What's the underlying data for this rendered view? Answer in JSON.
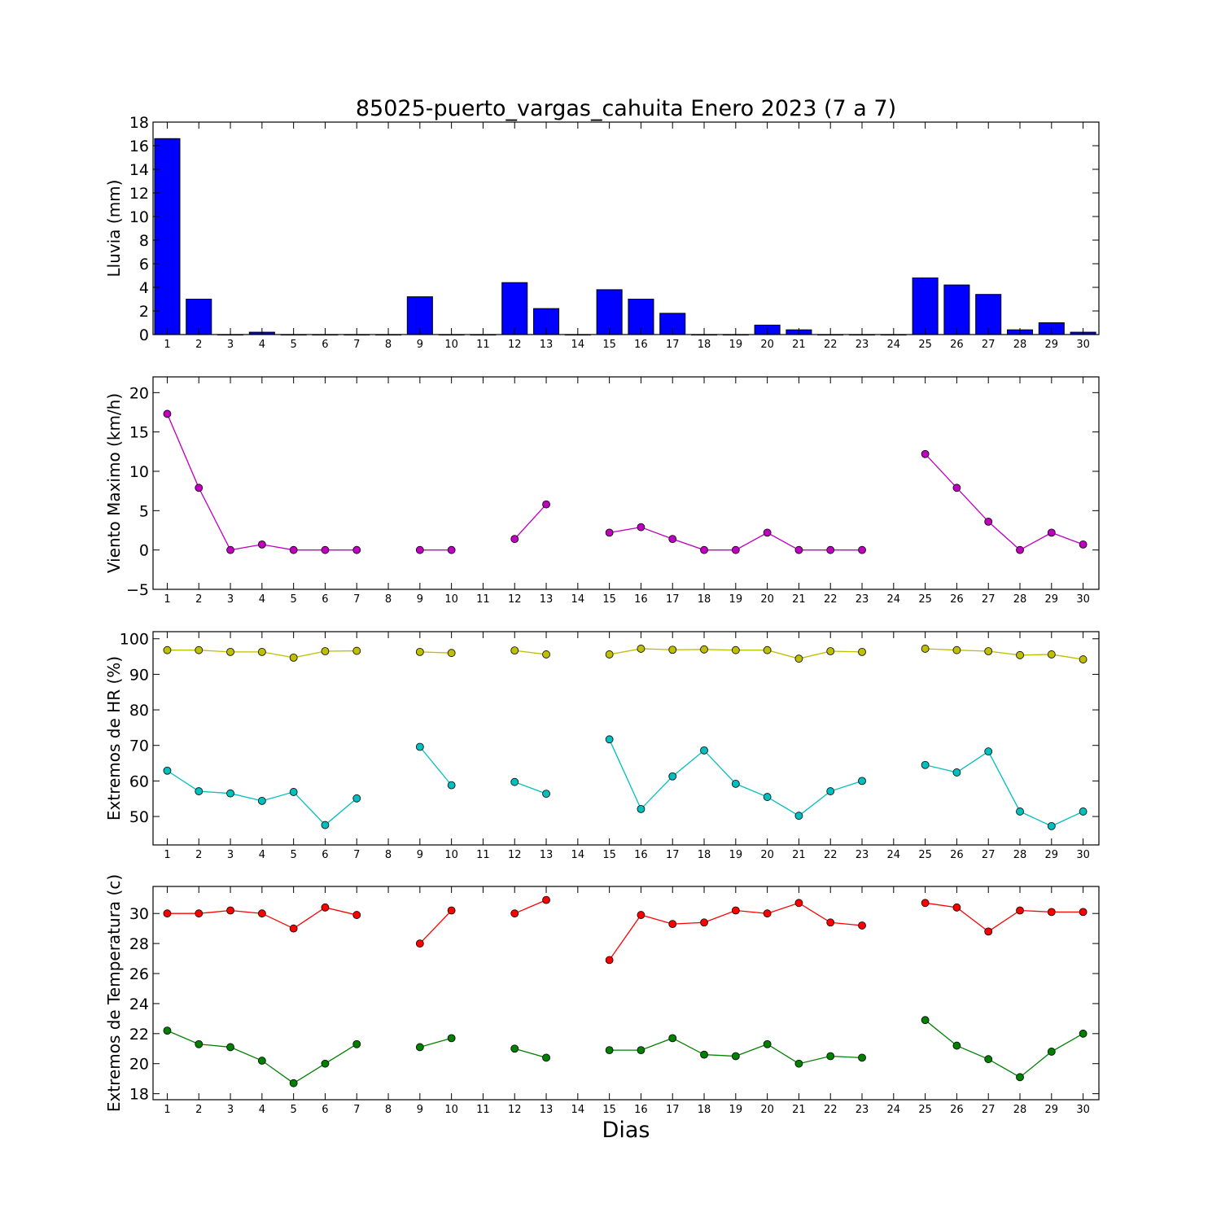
{
  "figure": {
    "title": "85025-puerto_vargas_cahuita Enero 2023  (7 a 7)",
    "xlabel": "Dias"
  },
  "chart_data": [
    {
      "type": "bar",
      "ylabel": "Lluvia (mm)",
      "ylim": [
        0,
        18
      ],
      "yticks": [
        0,
        2,
        4,
        6,
        8,
        10,
        12,
        14,
        16,
        18
      ],
      "categories": [
        1,
        2,
        3,
        4,
        5,
        6,
        7,
        8,
        9,
        10,
        11,
        12,
        13,
        14,
        15,
        16,
        17,
        18,
        19,
        20,
        21,
        22,
        23,
        24,
        25,
        26,
        27,
        28,
        29,
        30
      ],
      "values": [
        16.6,
        3.0,
        0.0,
        0.2,
        0.0,
        0.0,
        0.0,
        0.0,
        3.2,
        0.0,
        0.0,
        4.4,
        2.2,
        0.0,
        3.8,
        3.0,
        1.8,
        0.0,
        0.0,
        0.8,
        0.4,
        0.0,
        0.0,
        0.0,
        4.8,
        4.2,
        3.4,
        0.4,
        1.0,
        0.2
      ],
      "color": "#0000ff"
    },
    {
      "type": "line",
      "ylabel": "Viento Maximo (km/h)",
      "ylim": [
        -5,
        22
      ],
      "yticks": [
        -5,
        0,
        5,
        10,
        15,
        20
      ],
      "x": [
        1,
        2,
        3,
        4,
        5,
        6,
        7,
        8,
        9,
        10,
        11,
        12,
        13,
        14,
        15,
        16,
        17,
        18,
        19,
        20,
        21,
        22,
        23,
        24,
        25,
        26,
        27,
        28,
        29,
        30
      ],
      "series": [
        {
          "color": "#bf00bf",
          "values": [
            17.3,
            7.9,
            0.0,
            0.7,
            0.0,
            0.0,
            0.0,
            null,
            0.0,
            0.0,
            null,
            1.4,
            5.8,
            null,
            2.2,
            2.9,
            1.4,
            0.0,
            0.0,
            2.2,
            0.0,
            0.0,
            0.0,
            null,
            12.2,
            7.9,
            3.6,
            0.0,
            2.2,
            0.7
          ]
        }
      ]
    },
    {
      "type": "line",
      "ylabel": "Extremos de HR (%)",
      "ylim": [
        42,
        102
      ],
      "yticks": [
        50,
        60,
        70,
        80,
        90,
        100
      ],
      "x": [
        1,
        2,
        3,
        4,
        5,
        6,
        7,
        8,
        9,
        10,
        11,
        12,
        13,
        14,
        15,
        16,
        17,
        18,
        19,
        20,
        21,
        22,
        23,
        24,
        25,
        26,
        27,
        28,
        29,
        30
      ],
      "series": [
        {
          "color": "#bfbf00",
          "values": [
            96.8,
            96.8,
            96.3,
            96.3,
            94.7,
            96.5,
            96.6,
            null,
            96.3,
            96.0,
            null,
            96.7,
            95.6,
            null,
            95.6,
            97.2,
            96.9,
            97.0,
            96.8,
            96.8,
            94.4,
            96.5,
            96.3,
            null,
            97.2,
            96.8,
            96.5,
            95.4,
            95.6,
            94.2
          ]
        },
        {
          "color": "#00bfbf",
          "values": [
            62.9,
            57.1,
            56.5,
            54.4,
            56.9,
            47.6,
            55.1,
            null,
            69.6,
            58.8,
            null,
            59.7,
            56.4,
            null,
            71.7,
            52.1,
            61.3,
            68.6,
            59.2,
            55.5,
            50.2,
            57.1,
            60.0,
            null,
            64.5,
            62.4,
            68.3,
            51.4,
            47.3,
            51.4
          ]
        }
      ]
    },
    {
      "type": "line",
      "ylabel": "Extremos de Temperatura (c)",
      "ylim": [
        17.6,
        31.8
      ],
      "yticks": [
        18,
        20,
        22,
        24,
        26,
        28,
        30
      ],
      "x": [
        1,
        2,
        3,
        4,
        5,
        6,
        7,
        8,
        9,
        10,
        11,
        12,
        13,
        14,
        15,
        16,
        17,
        18,
        19,
        20,
        21,
        22,
        23,
        24,
        25,
        26,
        27,
        28,
        29,
        30
      ],
      "series": [
        {
          "color": "#ff0000",
          "values": [
            30.0,
            30.0,
            30.2,
            30.0,
            29.0,
            30.4,
            29.9,
            null,
            28.0,
            30.2,
            null,
            30.0,
            30.9,
            null,
            26.9,
            29.9,
            29.3,
            29.4,
            30.2,
            30.0,
            30.7,
            29.4,
            29.2,
            null,
            30.7,
            30.4,
            28.8,
            30.2,
            30.1,
            30.1
          ]
        },
        {
          "color": "#008000",
          "values": [
            22.2,
            21.3,
            21.1,
            20.2,
            18.7,
            20.0,
            21.3,
            null,
            21.1,
            21.7,
            null,
            21.0,
            20.4,
            null,
            20.9,
            20.9,
            21.7,
            20.6,
            20.5,
            21.3,
            20.0,
            20.5,
            20.4,
            null,
            22.9,
            21.2,
            20.3,
            19.1,
            20.8,
            22.0
          ]
        }
      ]
    }
  ]
}
